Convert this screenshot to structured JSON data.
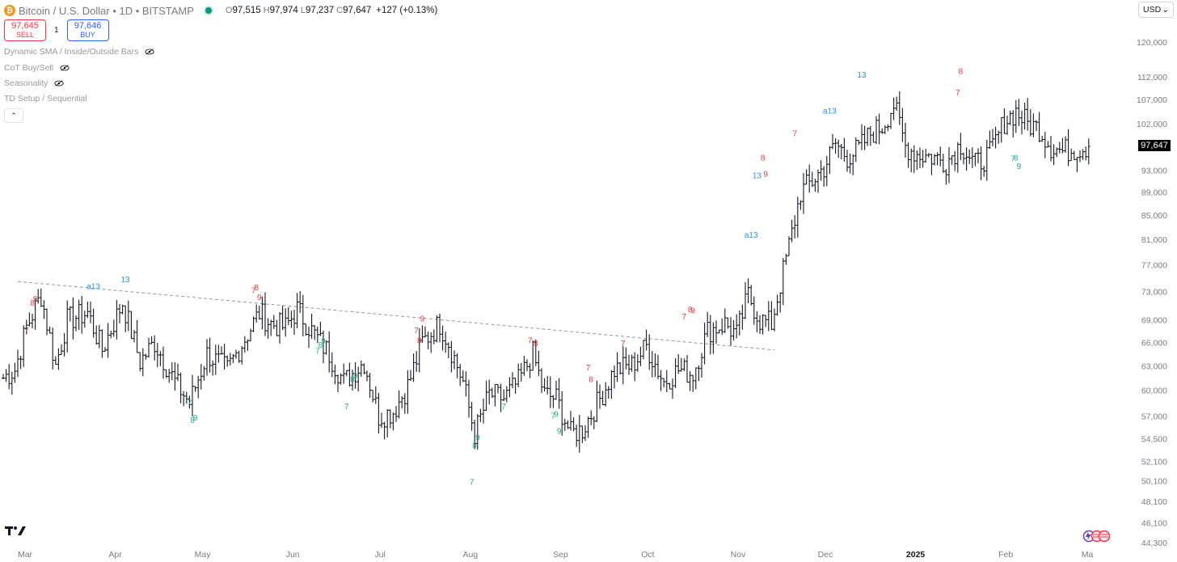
{
  "header": {
    "coin_glyph": "₿",
    "symbol": "Bitcoin / U.S. Dollar • 1D • BITSTAMP",
    "open_label": "O",
    "open": "97,515",
    "high_label": "H",
    "high": "97,974",
    "low_label": "L",
    "low": "97,237",
    "close_label": "C",
    "close": "97,647",
    "change": "+127 (+0.13%)",
    "status_color": "#089981"
  },
  "trade": {
    "sell_price": "97,645",
    "sell_label": "SELL",
    "quantity": "1",
    "buy_price": "97,646",
    "buy_label": "BUY",
    "sell_color": "#f23645",
    "buy_color": "#2962ff"
  },
  "indicators": [
    {
      "label": "Dynamic SMA / Inside/Outside Bars",
      "hidden_icon": true
    },
    {
      "label": "CoT Buy/Sell",
      "hidden_icon": true
    },
    {
      "label": "Seasonality",
      "hidden_icon": true
    },
    {
      "label": "TD Setup / Sequential",
      "hidden_icon": false
    }
  ],
  "collapse_glyph": "⌃",
  "currency": {
    "value": "USD",
    "chevron": "⌄"
  },
  "price_scale": [
    "120,000",
    "112,000",
    "107,000",
    "102,000",
    "93,000",
    "89,000",
    "85,000",
    "81,000",
    "77,000",
    "73,000",
    "69,000",
    "66,000",
    "63,000",
    "60,000",
    "57,000",
    "54,500",
    "52,100",
    "50,100",
    "48,100",
    "46,100",
    "44,300"
  ],
  "last_price_label": "97,647",
  "time_scale": [
    {
      "label": "Mar",
      "day": 0
    },
    {
      "label": "Apr",
      "day": 31
    },
    {
      "label": "May",
      "day": 61
    },
    {
      "label": "Jun",
      "day": 92
    },
    {
      "label": "Jul",
      "day": 122
    },
    {
      "label": "Aug",
      "day": 153
    },
    {
      "label": "Sep",
      "day": 184
    },
    {
      "label": "Oct",
      "day": 214
    },
    {
      "label": "Nov",
      "day": 245
    },
    {
      "label": "Dec",
      "day": 275
    },
    {
      "label": "2025",
      "day": 306,
      "bold": true
    },
    {
      "label": "Feb",
      "day": 337
    },
    {
      "label": "Ma",
      "day": 365
    }
  ],
  "colors": {
    "candle": "#131722",
    "sell_signal": "#f23645",
    "buy_signal": "#22ab94",
    "countdown": "#2196f3",
    "trendline": "#9598a1"
  },
  "chart_data": {
    "type": "ohlc",
    "interval": "1D",
    "x_start": "2024-03-01",
    "x_end": "2025-02-08",
    "y_scale": "log",
    "ylim": [
      44300,
      120000
    ],
    "trendline": [
      {
        "day": 5,
        "price": 74500
      },
      {
        "day": 265,
        "price": 65000
      }
    ],
    "anchors": [
      {
        "day": 0,
        "price": 61500
      },
      {
        "day": 4,
        "price": 62500
      },
      {
        "day": 8,
        "price": 68000
      },
      {
        "day": 13,
        "price": 72500
      },
      {
        "day": 18,
        "price": 63000
      },
      {
        "day": 22,
        "price": 69000
      },
      {
        "day": 29,
        "price": 70000
      },
      {
        "day": 34,
        "price": 65000
      },
      {
        "day": 41,
        "price": 71500
      },
      {
        "day": 47,
        "price": 63500
      },
      {
        "day": 52,
        "price": 66000
      },
      {
        "day": 59,
        "price": 61000
      },
      {
        "day": 64,
        "price": 58500
      },
      {
        "day": 70,
        "price": 64500
      },
      {
        "day": 77,
        "price": 62500
      },
      {
        "day": 83,
        "price": 66500
      },
      {
        "day": 88,
        "price": 70000
      },
      {
        "day": 92,
        "price": 68500
      },
      {
        "day": 97,
        "price": 68000
      },
      {
        "day": 101,
        "price": 70500
      },
      {
        "day": 106,
        "price": 67500
      },
      {
        "day": 112,
        "price": 64500
      },
      {
        "day": 117,
        "price": 61000
      },
      {
        "day": 124,
        "price": 63500
      },
      {
        "day": 129,
        "price": 57000
      },
      {
        "day": 134,
        "price": 57500
      },
      {
        "day": 139,
        "price": 60500
      },
      {
        "day": 144,
        "price": 66000
      },
      {
        "day": 150,
        "price": 68500
      },
      {
        "day": 153,
        "price": 66000
      },
      {
        "day": 158,
        "price": 61000
      },
      {
        "day": 162,
        "price": 55000
      },
      {
        "day": 167,
        "price": 59500
      },
      {
        "day": 172,
        "price": 59000
      },
      {
        "day": 177,
        "price": 61000
      },
      {
        "day": 182,
        "price": 64500
      },
      {
        "day": 186,
        "price": 59500
      },
      {
        "day": 190,
        "price": 59000
      },
      {
        "day": 195,
        "price": 55000
      },
      {
        "day": 199,
        "price": 55500
      },
      {
        "day": 205,
        "price": 59000
      },
      {
        "day": 210,
        "price": 62500
      },
      {
        "day": 216,
        "price": 63000
      },
      {
        "day": 221,
        "price": 65500
      },
      {
        "day": 227,
        "price": 61000
      },
      {
        "day": 232,
        "price": 62500
      },
      {
        "day": 237,
        "price": 62000
      },
      {
        "day": 242,
        "price": 67500
      },
      {
        "day": 248,
        "price": 68500
      },
      {
        "day": 252,
        "price": 67000
      },
      {
        "day": 256,
        "price": 72500
      },
      {
        "day": 260,
        "price": 69000
      },
      {
        "day": 264,
        "price": 68500
      },
      {
        "day": 268,
        "price": 76000
      },
      {
        "day": 271,
        "price": 82000
      },
      {
        "day": 274,
        "price": 89000
      },
      {
        "day": 278,
        "price": 91000
      },
      {
        "day": 282,
        "price": 93500
      },
      {
        "day": 286,
        "price": 98000
      },
      {
        "day": 290,
        "price": 95500
      },
      {
        "day": 294,
        "price": 97000
      },
      {
        "day": 298,
        "price": 100000
      },
      {
        "day": 302,
        "price": 101500
      },
      {
        "day": 306,
        "price": 106000
      },
      {
        "day": 310,
        "price": 97500
      },
      {
        "day": 314,
        "price": 96000
      },
      {
        "day": 319,
        "price": 95500
      },
      {
        "day": 324,
        "price": 94500
      },
      {
        "day": 329,
        "price": 98000
      },
      {
        "day": 334,
        "price": 94000
      },
      {
        "day": 339,
        "price": 96000
      },
      {
        "day": 344,
        "price": 102500
      },
      {
        "day": 348,
        "price": 104500
      },
      {
        "day": 352,
        "price": 102000
      },
      {
        "day": 356,
        "price": 101000
      },
      {
        "day": 360,
        "price": 97500
      },
      {
        "day": 364,
        "price": 96500
      },
      {
        "day": 368,
        "price": 97000
      },
      {
        "day": 373,
        "price": 97500
      }
    ],
    "td_labels": [
      {
        "day": 8,
        "price": 67200,
        "text": "7",
        "kind": "sell"
      },
      {
        "day": 10,
        "price": 71000,
        "text": "8",
        "kind": "sell"
      },
      {
        "day": 11,
        "price": 71600,
        "text": "9",
        "kind": "sell"
      },
      {
        "day": 31,
        "price": 73400,
        "text": "a13",
        "kind": "count"
      },
      {
        "day": 42,
        "price": 74400,
        "text": "13",
        "kind": "count"
      },
      {
        "day": 64,
        "price": 58200,
        "text": "7",
        "kind": "buy"
      },
      {
        "day": 65,
        "price": 56200,
        "text": "8",
        "kind": "buy"
      },
      {
        "day": 66,
        "price": 56500,
        "text": "9",
        "kind": "buy"
      },
      {
        "day": 86,
        "price": 72800,
        "text": "7",
        "kind": "sell"
      },
      {
        "day": 87,
        "price": 73200,
        "text": "8",
        "kind": "sell"
      },
      {
        "day": 88,
        "price": 71800,
        "text": "9",
        "kind": "sell"
      },
      {
        "day": 108,
        "price": 64500,
        "text": "7",
        "kind": "buy"
      },
      {
        "day": 109,
        "price": 65300,
        "text": "8",
        "kind": "buy"
      },
      {
        "day": 110,
        "price": 65800,
        "text": "9",
        "kind": "buy"
      },
      {
        "day": 120,
        "price": 61000,
        "text": "8",
        "kind": "buy"
      },
      {
        "day": 121,
        "price": 61400,
        "text": "9",
        "kind": "buy"
      },
      {
        "day": 118,
        "price": 57800,
        "text": "7",
        "kind": "buy"
      },
      {
        "day": 142,
        "price": 67200,
        "text": "7",
        "kind": "sell"
      },
      {
        "day": 143,
        "price": 65900,
        "text": "8",
        "kind": "sell"
      },
      {
        "day": 144,
        "price": 68800,
        "text": "9",
        "kind": "sell"
      },
      {
        "day": 162,
        "price": 53500,
        "text": "8",
        "kind": "buy"
      },
      {
        "day": 163,
        "price": 54300,
        "text": "9",
        "kind": "buy"
      },
      {
        "day": 161,
        "price": 49700,
        "text": "7",
        "kind": "buy"
      },
      {
        "day": 172,
        "price": 57800,
        "text": "7",
        "kind": "buy"
      },
      {
        "day": 181,
        "price": 65900,
        "text": "7",
        "kind": "sell"
      },
      {
        "day": 183,
        "price": 65500,
        "text": "8",
        "kind": "sell"
      },
      {
        "day": 189,
        "price": 56700,
        "text": "7",
        "kind": "buy"
      },
      {
        "day": 190,
        "price": 56900,
        "text": "9",
        "kind": "buy"
      },
      {
        "day": 191,
        "price": 55000,
        "text": "9",
        "kind": "buy"
      },
      {
        "day": 201,
        "price": 62400,
        "text": "7",
        "kind": "sell"
      },
      {
        "day": 202,
        "price": 61000,
        "text": "8",
        "kind": "sell"
      },
      {
        "day": 213,
        "price": 65500,
        "text": "7",
        "kind": "sell"
      },
      {
        "day": 234,
        "price": 69100,
        "text": "7",
        "kind": "sell"
      },
      {
        "day": 236,
        "price": 70100,
        "text": "8",
        "kind": "sell"
      },
      {
        "day": 237,
        "price": 69900,
        "text": "9",
        "kind": "sell"
      },
      {
        "day": 257,
        "price": 81300,
        "text": "a13",
        "kind": "count"
      },
      {
        "day": 259,
        "price": 91500,
        "text": "13",
        "kind": "count"
      },
      {
        "day": 261,
        "price": 94800,
        "text": "8",
        "kind": "sell"
      },
      {
        "day": 262,
        "price": 91800,
        "text": "9",
        "kind": "sell"
      },
      {
        "day": 272,
        "price": 99500,
        "text": "7",
        "kind": "sell"
      },
      {
        "day": 284,
        "price": 104100,
        "text": "a13",
        "kind": "count"
      },
      {
        "day": 295,
        "price": 111800,
        "text": "13",
        "kind": "count"
      },
      {
        "day": 328,
        "price": 107900,
        "text": "7",
        "kind": "sell"
      },
      {
        "day": 329,
        "price": 112600,
        "text": "8",
        "kind": "sell"
      },
      {
        "day": 347,
        "price": 94600,
        "text": "7",
        "kind": "buy"
      },
      {
        "day": 348,
        "price": 94800,
        "text": "8",
        "kind": "buy"
      },
      {
        "day": 349,
        "price": 93200,
        "text": "9",
        "kind": "buy"
      }
    ]
  }
}
